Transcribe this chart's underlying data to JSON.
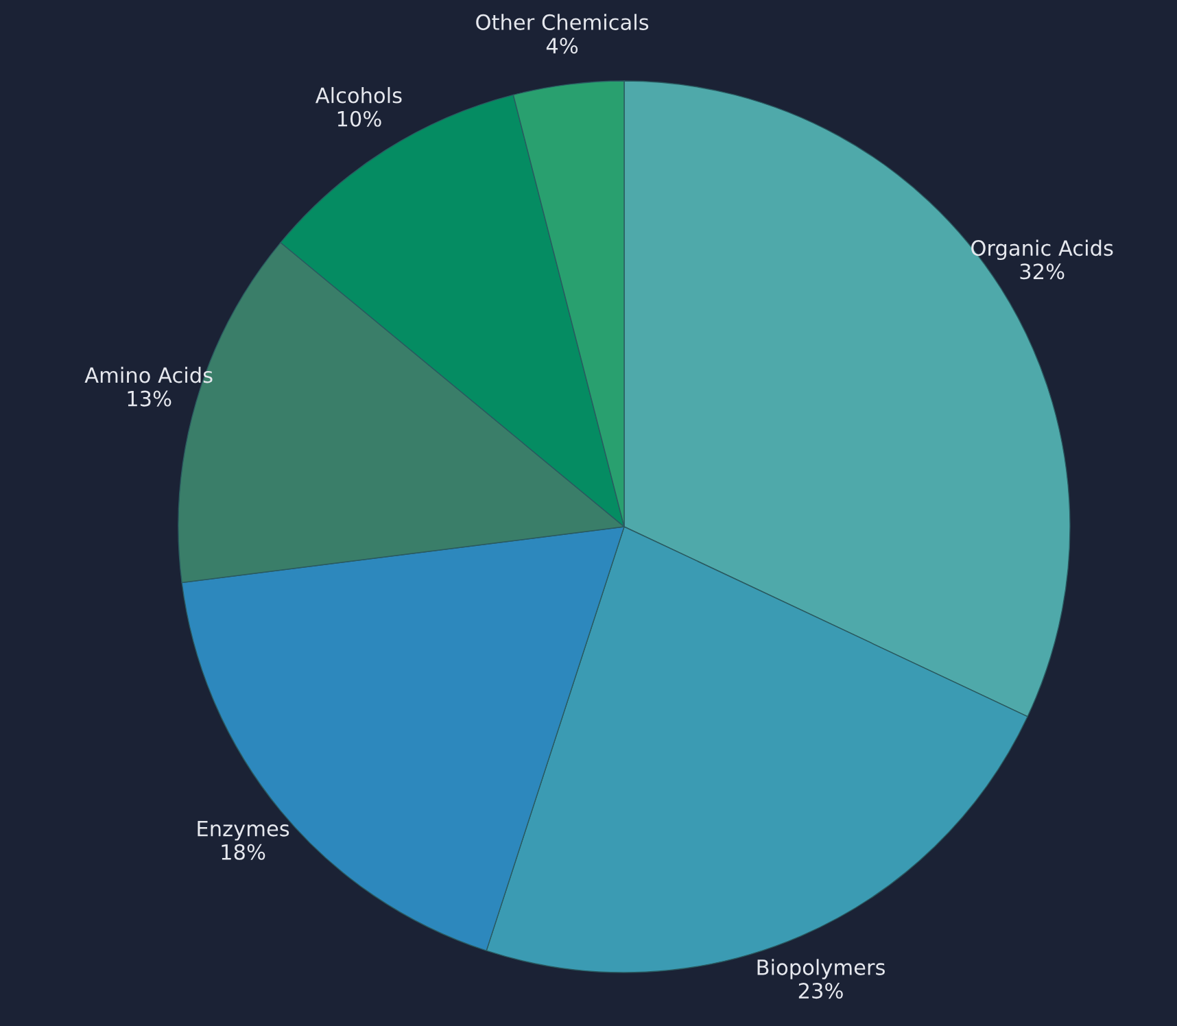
{
  "chart_data": {
    "type": "pie",
    "categories": [
      "Organic Acids",
      "Biopolymers",
      "Enzymes",
      "Amino Acids",
      "Alcohols",
      "Other Chemicals"
    ],
    "values": [
      32,
      23,
      18,
      13,
      10,
      4
    ],
    "value_labels": [
      "32%",
      "23%",
      "18%",
      "13%",
      "10%",
      "4%"
    ],
    "colors": [
      "#4fa9aa",
      "#3b9bb3",
      "#2d88bd",
      "#3a7e69",
      "#058c62",
      "#29a06f"
    ],
    "legend": false
  }
}
